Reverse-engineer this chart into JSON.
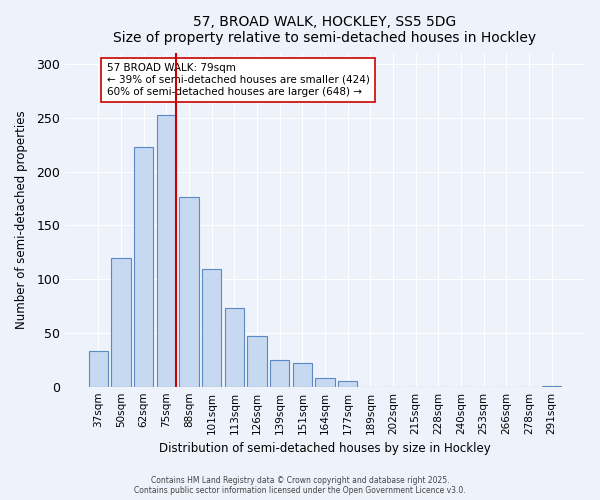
{
  "title": "57, BROAD WALK, HOCKLEY, SS5 5DG",
  "subtitle": "Size of property relative to semi-detached houses in Hockley",
  "xlabel": "Distribution of semi-detached houses by size in Hockley",
  "ylabel": "Number of semi-detached properties",
  "bar_labels": [
    "37sqm",
    "50sqm",
    "62sqm",
    "75sqm",
    "88sqm",
    "101sqm",
    "113sqm",
    "126sqm",
    "139sqm",
    "151sqm",
    "164sqm",
    "177sqm",
    "189sqm",
    "202sqm",
    "215sqm",
    "228sqm",
    "240sqm",
    "253sqm",
    "266sqm",
    "278sqm",
    "291sqm"
  ],
  "bar_values": [
    33,
    120,
    223,
    253,
    176,
    109,
    73,
    47,
    25,
    22,
    8,
    5,
    0,
    0,
    0,
    0,
    0,
    0,
    0,
    0,
    1
  ],
  "bar_color": "#c6d9f0",
  "bar_edge_color": "#5a8ac6",
  "vline_pos": 3.43,
  "vline_color": "#cc0000",
  "annotation_title": "57 BROAD WALK: 79sqm",
  "annotation_line1": "← 39% of semi-detached houses are smaller (424)",
  "annotation_line2": "60% of semi-detached houses are larger (648) →",
  "annotation_box_color": "#ffffff",
  "annotation_box_edge": "#cc0000",
  "ylim": [
    0,
    310
  ],
  "yticks": [
    0,
    50,
    100,
    150,
    200,
    250,
    300
  ],
  "footer1": "Contains HM Land Registry data © Crown copyright and database right 2025.",
  "footer2": "Contains public sector information licensed under the Open Government Licence v3.0.",
  "background_color": "#eef2fb",
  "plot_background": "#eef2fb"
}
